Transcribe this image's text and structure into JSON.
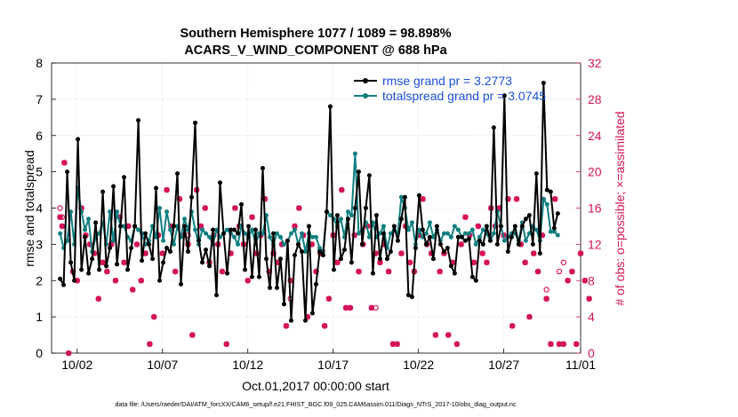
{
  "chart_data": {
    "type": "line",
    "title": "Southern Hemisphere 1077 / 1089 = 98.898%",
    "subtitle": "ACARS_V_WIND_COMPONENT @ 688 hPa",
    "xlabel": "Oct.01,2017 00:00:00 start",
    "ylabel": "rmse and totalspread",
    "ylabel_right": "# of obs: o=possible; ×=assimilated",
    "footer": "data file: /Users/raeder/DAI/ATM_forcXX/CAM6_setup/f.e21.FHIST_BGC.f09_025.CAM6assim.011/Diags_NTrS_2017-10/obs_diag_output.nc",
    "x_range_days": [
      0.5,
      31.5
    ],
    "ylim": [
      0,
      8
    ],
    "ylim_right": [
      0,
      32
    ],
    "x_ticks": [
      {
        "value": 2,
        "label": "10/02"
      },
      {
        "value": 7,
        "label": "10/07"
      },
      {
        "value": 12,
        "label": "10/12"
      },
      {
        "value": 17,
        "label": "10/17"
      },
      {
        "value": 22,
        "label": "10/22"
      },
      {
        "value": 27,
        "label": "10/27"
      },
      {
        "value": 32,
        "label": "11/01"
      }
    ],
    "y_ticks": [
      "0",
      "1",
      "2",
      "3",
      "4",
      "5",
      "6",
      "7",
      "8"
    ],
    "y_ticks_right": [
      "0",
      "4",
      "8",
      "12",
      "16",
      "20",
      "24",
      "28",
      "32"
    ],
    "grid": true,
    "legend_position": "top-right",
    "colors": {
      "rmse": "#000000",
      "totalspread": "#0f7f80",
      "obs": "#d4145a",
      "legend_text": "#1a4fd6"
    },
    "series": [
      {
        "name": "rmse grand pr = 3.2773",
        "color": "#000000",
        "values": [
          2.05,
          1.88,
          5.0,
          2.5,
          2.0,
          5.9,
          2.3,
          3.2,
          2.2,
          2.6,
          3.6,
          2.3,
          4.45,
          2.4,
          2.9,
          4.6,
          2.45,
          3.5,
          4.85,
          2.3,
          2.9,
          3.5,
          6.42,
          2.55,
          3.3,
          3.0,
          2.6,
          4.55,
          2.0,
          2.5,
          2.9,
          2.8,
          3.5,
          4.95,
          1.9,
          3.5,
          2.8,
          4.3,
          6.35,
          3.1,
          2.5,
          2.85,
          2.4,
          3.4,
          1.6,
          4.7,
          3.3,
          2.2,
          3.4,
          3.4,
          3.3,
          4.1,
          2.3,
          3.5,
          2.1,
          3.4,
          2.1,
          5.1,
          2.6,
          1.8,
          3.3,
          1.8,
          2.6,
          1.35,
          3.1,
          0.9,
          2.7,
          3.0,
          2.8,
          0.9,
          3.5,
          1.1,
          1.9,
          2.8,
          2.7,
          3.9,
          6.8,
          2.3,
          3.8,
          2.6,
          2.85,
          3.7,
          2.5,
          4.0,
          5.0,
          3.0,
          4.0,
          4.9,
          2.2,
          3.8,
          2.6,
          3.3,
          2.6,
          2.8,
          3.5,
          3.1,
          3.7,
          4.3,
          1.6,
          1.55,
          2.9,
          4.35,
          3.4,
          3.0,
          3.2,
          2.6,
          3.5,
          3.0,
          2.8,
          2.9,
          2.4,
          2.2,
          3.2,
          3.2,
          3.1,
          3.15,
          2.1,
          2.0,
          3.1,
          3.0,
          3.5,
          3.1,
          6.22,
          3.0,
          3.5,
          7.1,
          2.8,
          3.2,
          3.5,
          3.0,
          3.5,
          3.7,
          3.8,
          3.0,
          4.95,
          2.75,
          7.45,
          4.5,
          4.45,
          3.45,
          3.85
        ],
        "x_start": 1.0,
        "x_step": 0.2083
      },
      {
        "name": "totalspread grand pr = 3.0745",
        "color": "#0f7f80",
        "values": [
          3.3,
          2.9,
          3.1,
          3.9,
          3.0,
          4.55,
          3.9,
          3.4,
          3.7,
          2.8,
          3.2,
          3.3,
          3.6,
          3.0,
          3.9,
          3.1,
          3.9,
          3.5,
          3.5,
          3.2,
          3.1,
          3.5,
          3.4,
          3.3,
          3.0,
          3.1,
          3.5,
          3.2,
          4.0,
          3.1,
          3.9,
          3.4,
          3.0,
          3.5,
          3.2,
          3.7,
          3.4,
          3.9,
          3.4,
          3.0,
          3.4,
          3.3,
          3.2,
          3.0,
          3.4,
          3.2,
          3.3,
          3.4,
          3.3,
          3.2,
          3.0,
          3.5,
          3.3,
          3.2,
          3.4,
          3.0,
          3.3,
          3.3,
          3.8,
          3.2,
          3.0,
          3.3,
          3.2,
          3.0,
          3.1,
          3.3,
          3.4,
          3.0,
          3.3,
          2.8,
          3.3,
          3.2,
          3.2,
          2.9,
          2.8,
          3.9,
          3.8,
          3.7,
          3.5,
          3.7,
          3.2,
          3.9,
          3.8,
          5.5,
          3.3,
          3.4,
          3.6,
          3.2,
          3.6,
          3.2,
          3.3,
          3.5,
          2.9,
          3.3,
          3.4,
          3.3,
          4.3,
          4.0,
          3.4,
          3.6,
          3.0,
          3.4,
          3.2,
          3.3,
          3.6,
          3.2,
          3.4,
          3.1,
          3.3,
          3.3,
          3.2,
          3.5,
          3.4,
          3.2,
          3.3,
          3.3,
          3.4,
          3.0,
          3.2,
          3.4,
          3.3,
          3.1,
          3.3,
          3.9,
          3.5,
          3.1,
          3.2,
          3.3,
          3.3,
          3.1,
          3.6,
          3.1,
          3.3,
          3.5,
          3.4,
          3.1,
          4.25,
          4.1,
          3.35,
          3.35,
          3.25
        ],
        "x_start": 1.0,
        "x_step": 0.2083
      }
    ],
    "obs_assimilated": [
      [
        1.0,
        15
      ],
      [
        1.12,
        14
      ],
      [
        1.25,
        21
      ],
      [
        1.5,
        0
      ],
      [
        1.75,
        9
      ],
      [
        2.0,
        8
      ],
      [
        2.25,
        16
      ],
      [
        2.5,
        13
      ],
      [
        2.75,
        12
      ],
      [
        3.0,
        11
      ],
      [
        3.25,
        6
      ],
      [
        3.5,
        10
      ],
      [
        3.75,
        9
      ],
      [
        4.0,
        12
      ],
      [
        4.25,
        8
      ],
      [
        4.5,
        15
      ],
      [
        4.75,
        10
      ],
      [
        5.0,
        14
      ],
      [
        5.25,
        7
      ],
      [
        5.5,
        12
      ],
      [
        5.75,
        8
      ],
      [
        6.0,
        11
      ],
      [
        6.25,
        1
      ],
      [
        6.5,
        4
      ],
      [
        6.75,
        13
      ],
      [
        7.0,
        11
      ],
      [
        7.25,
        18
      ],
      [
        7.5,
        14
      ],
      [
        7.75,
        9
      ],
      [
        8.0,
        17
      ],
      [
        8.25,
        13
      ],
      [
        8.5,
        12
      ],
      [
        8.75,
        2
      ],
      [
        9.0,
        18
      ],
      [
        9.25,
        14
      ],
      [
        9.5,
        16
      ],
      [
        9.75,
        10
      ],
      [
        10.0,
        13
      ],
      [
        10.25,
        12
      ],
      [
        10.5,
        9
      ],
      [
        10.75,
        1
      ],
      [
        11.0,
        11
      ],
      [
        11.25,
        16
      ],
      [
        11.5,
        14
      ],
      [
        11.75,
        12
      ],
      [
        12.0,
        8
      ],
      [
        12.25,
        15
      ],
      [
        12.5,
        11
      ],
      [
        12.75,
        13
      ],
      [
        13.0,
        17
      ],
      [
        13.25,
        9
      ],
      [
        13.5,
        11
      ],
      [
        13.75,
        10
      ],
      [
        14.0,
        12
      ],
      [
        14.25,
        3
      ],
      [
        14.5,
        8
      ],
      [
        14.75,
        14
      ],
      [
        15.0,
        16
      ],
      [
        15.25,
        13
      ],
      [
        15.5,
        4
      ],
      [
        15.75,
        12
      ],
      [
        16.0,
        9
      ],
      [
        16.25,
        11
      ],
      [
        16.5,
        3
      ],
      [
        16.75,
        6
      ],
      [
        17.0,
        13
      ],
      [
        17.25,
        10
      ],
      [
        17.5,
        18
      ],
      [
        17.75,
        5
      ],
      [
        18.0,
        5
      ],
      [
        18.25,
        13
      ],
      [
        18.5,
        9
      ],
      [
        18.75,
        12
      ],
      [
        19.0,
        14
      ],
      [
        19.25,
        5
      ],
      [
        19.5,
        11
      ],
      [
        19.75,
        10
      ],
      [
        20.0,
        12
      ],
      [
        20.25,
        9
      ],
      [
        20.5,
        1
      ],
      [
        20.75,
        1
      ],
      [
        21.0,
        11
      ],
      [
        21.25,
        14
      ],
      [
        21.5,
        10
      ],
      [
        21.75,
        9
      ],
      [
        22.0,
        13
      ],
      [
        22.25,
        17
      ],
      [
        22.5,
        12
      ],
      [
        22.75,
        11
      ],
      [
        23.0,
        2
      ],
      [
        23.25,
        9
      ],
      [
        23.5,
        11
      ],
      [
        23.75,
        2
      ],
      [
        24.0,
        10
      ],
      [
        24.25,
        1
      ],
      [
        24.5,
        12
      ],
      [
        24.75,
        15
      ],
      [
        25.0,
        13
      ],
      [
        25.25,
        10
      ],
      [
        25.5,
        14
      ],
      [
        25.75,
        11
      ],
      [
        26.0,
        10
      ],
      [
        26.25,
        16
      ],
      [
        26.5,
        14
      ],
      [
        26.75,
        16
      ],
      [
        27.0,
        13
      ],
      [
        27.25,
        17
      ],
      [
        27.5,
        3
      ],
      [
        27.75,
        17
      ],
      [
        28.0,
        12
      ],
      [
        28.25,
        10
      ],
      [
        28.5,
        4
      ],
      [
        28.75,
        11
      ],
      [
        29.0,
        9
      ],
      [
        29.25,
        13
      ],
      [
        29.5,
        6
      ],
      [
        29.75,
        1
      ],
      [
        30.0,
        17
      ],
      [
        30.25,
        1
      ],
      [
        30.5,
        1
      ],
      [
        30.75,
        8
      ],
      [
        31.0,
        9
      ],
      [
        31.25,
        1
      ],
      [
        31.5,
        11
      ],
      [
        31.75,
        8
      ],
      [
        32.0,
        6
      ]
    ],
    "obs_possible": [
      [
        1.0,
        16
      ],
      [
        1.12,
        15
      ],
      [
        8.5,
        13
      ],
      [
        14.5,
        6
      ],
      [
        19.5,
        5
      ],
      [
        29.5,
        7
      ],
      [
        30.25,
        9
      ],
      [
        30.5,
        10
      ]
    ]
  }
}
